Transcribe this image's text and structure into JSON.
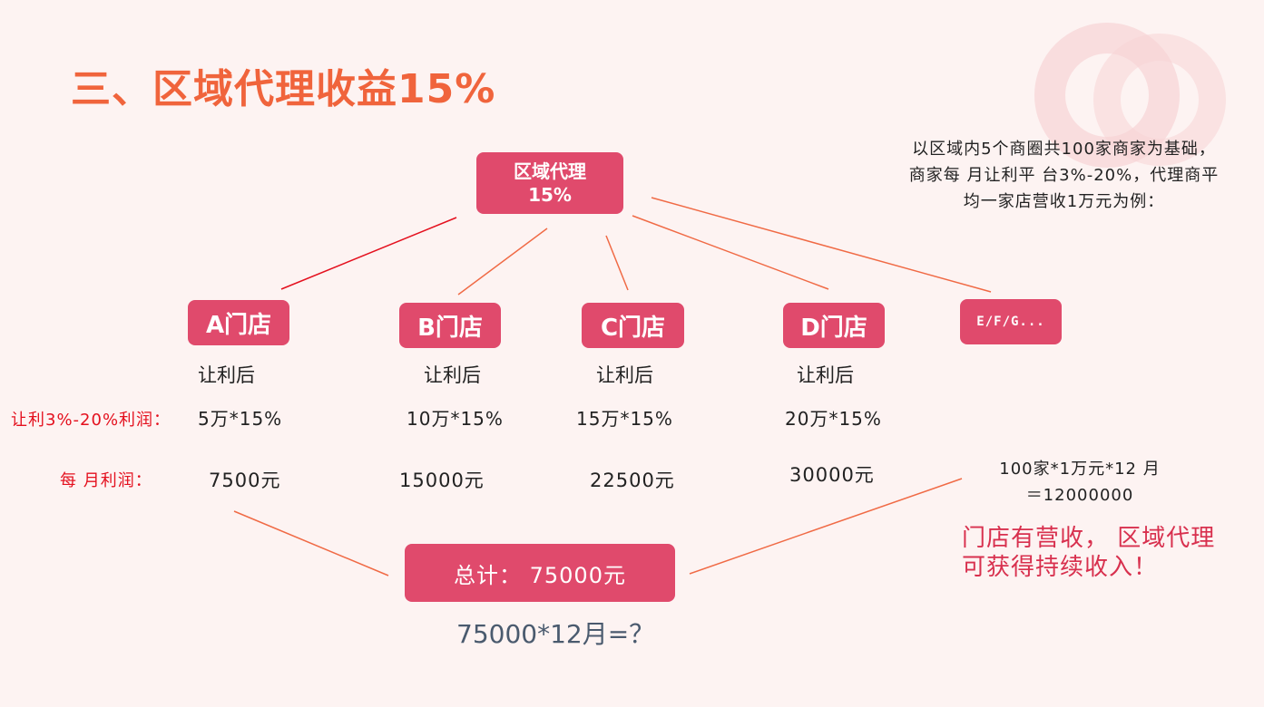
{
  "title": "三、区域代理收益15%",
  "root_box": {
    "line1": "区域代理",
    "line2": "15%"
  },
  "stores": [
    {
      "name": "A门店",
      "after": "让利后",
      "rate": "5万*15%",
      "profit": "7500元"
    },
    {
      "name": "B门店",
      "after": "让利后",
      "rate": "10万*15%",
      "profit": "15000元"
    },
    {
      "name": "C门店",
      "after": "让利后",
      "rate": "15万*15%",
      "profit": "22500元"
    },
    {
      "name": "D门店",
      "after": "让利后",
      "rate": "20万*15%",
      "profit": "30000元"
    },
    {
      "name": "E/F/G..."
    }
  ],
  "labels": {
    "rate_label": "让利3%-20%利润：",
    "profit_label": "每 月利润："
  },
  "note": "以区域内5个商圈共100家商家为基础， 商家每 月让利平 台3%-20%，代理商平均一家店营收1万元为例：",
  "calc": {
    "line1": "100家*1万元*12 月",
    "line2": "＝12000000"
  },
  "slogan": "门店有营收， 区域代理可获得持续收入！",
  "total": "总计：  75000元",
  "yearly": "75000*12月=？",
  "colors": {
    "title": "#f0643c",
    "box": "#e04a6c",
    "connector": "#f06a45",
    "slogan": "#d8304e",
    "label_red": "#e4101e"
  }
}
